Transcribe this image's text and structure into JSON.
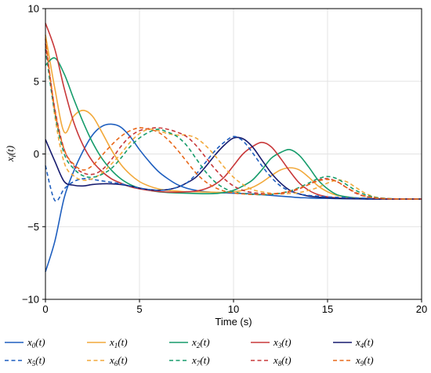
{
  "chart_data": {
    "type": "line",
    "title": "",
    "xlabel": "Time (s)",
    "ylabel": "x_i(t)",
    "ylabel_parts": {
      "x": "x",
      "i": "i",
      "t": "(t)"
    },
    "xlim": [
      0,
      20
    ],
    "ylim": [
      -10,
      10
    ],
    "xticks": [
      "0",
      "5",
      "10",
      "15",
      "20"
    ],
    "yticks": [
      "10",
      "5",
      "0",
      "−5",
      "−10"
    ],
    "grid": true,
    "legend": "bottom",
    "x": [
      0,
      0.5,
      1,
      1.5,
      2,
      2.5,
      3,
      3.5,
      4,
      4.5,
      5,
      5.5,
      6,
      6.5,
      7,
      7.5,
      8,
      8.5,
      9,
      9.5,
      10,
      10.5,
      11,
      11.5,
      12,
      12.5,
      13,
      13.5,
      14,
      14.5,
      15,
      15.5,
      16,
      16.5,
      17,
      17.5,
      18,
      18.5,
      19,
      19.5,
      20
    ],
    "series": [
      {
        "name": "x_0(t)",
        "sub": "0",
        "color": "#1f5fbf",
        "dash": false,
        "values": [
          -8.1,
          -6.0,
          -3.0,
          -1.2,
          0.2,
          1.3,
          1.9,
          2.05,
          1.85,
          1.2,
          0.3,
          -0.5,
          -1.2,
          -1.7,
          -2.1,
          -2.35,
          -2.5,
          -2.6,
          -2.65,
          -2.68,
          -2.7,
          -2.72,
          -2.75,
          -2.8,
          -2.85,
          -2.9,
          -2.95,
          -3.0,
          -3.02,
          -3.05,
          -3.05,
          -3.07,
          -3.08,
          -3.09,
          -3.1,
          -3.1,
          -3.1,
          -3.1,
          -3.1,
          -3.1,
          -3.1
        ]
      },
      {
        "name": "x_1(t)",
        "sub": "1",
        "color": "#f2a93b",
        "dash": false,
        "values": [
          8.2,
          4.5,
          1.5,
          2.6,
          3.0,
          2.6,
          1.5,
          0.3,
          -0.7,
          -1.4,
          -1.9,
          -2.2,
          -2.4,
          -2.5,
          -2.55,
          -2.6,
          -2.6,
          -2.62,
          -2.63,
          -2.65,
          -2.6,
          -2.5,
          -2.3,
          -1.95,
          -1.5,
          -1.1,
          -0.95,
          -1.1,
          -1.6,
          -2.2,
          -2.6,
          -2.85,
          -2.95,
          -3.02,
          -3.05,
          -3.08,
          -3.1,
          -3.1,
          -3.1,
          -3.1,
          -3.1
        ]
      },
      {
        "name": "x_2(t)",
        "sub": "2",
        "color": "#169c6b",
        "dash": false,
        "values": [
          6.1,
          6.6,
          5.5,
          3.8,
          2.2,
          0.8,
          -0.3,
          -1.1,
          -1.7,
          -2.1,
          -2.35,
          -2.5,
          -2.6,
          -2.65,
          -2.68,
          -2.7,
          -2.72,
          -2.73,
          -2.72,
          -2.65,
          -2.5,
          -2.2,
          -1.8,
          -1.1,
          -0.3,
          0.1,
          0.3,
          -0.1,
          -0.9,
          -1.8,
          -2.4,
          -2.8,
          -2.95,
          -3.03,
          -3.06,
          -3.08,
          -3.1,
          -3.1,
          -3.1,
          -3.1,
          -3.1
        ]
      },
      {
        "name": "x_3(t)",
        "sub": "3",
        "color": "#c8383a",
        "dash": false,
        "values": [
          9.0,
          7.2,
          4.5,
          2.2,
          0.6,
          -0.5,
          -1.2,
          -1.7,
          -2.0,
          -2.25,
          -2.4,
          -2.5,
          -2.58,
          -2.62,
          -2.63,
          -2.6,
          -2.55,
          -2.4,
          -2.1,
          -1.6,
          -0.8,
          0.0,
          0.5,
          0.8,
          0.5,
          -0.3,
          -1.2,
          -2.0,
          -2.5,
          -2.8,
          -2.95,
          -3.02,
          -3.05,
          -3.07,
          -3.08,
          -3.09,
          -3.1,
          -3.1,
          -3.1,
          -3.1,
          -3.1
        ]
      },
      {
        "name": "x_4(t)",
        "sub": "4",
        "color": "#161b6e",
        "dash": false,
        "values": [
          1.0,
          -0.5,
          -1.9,
          -2.15,
          -2.2,
          -2.1,
          -2.05,
          -2.05,
          -2.1,
          -2.2,
          -2.35,
          -2.45,
          -2.5,
          -2.45,
          -2.3,
          -2.0,
          -1.6,
          -0.9,
          -0.1,
          0.6,
          1.1,
          1.05,
          0.5,
          -0.4,
          -1.3,
          -2.0,
          -2.5,
          -2.75,
          -2.9,
          -2.97,
          -3.02,
          -3.05,
          -3.07,
          -3.08,
          -3.09,
          -3.1,
          -3.1,
          -3.1,
          -3.1,
          -3.1,
          -3.1
        ]
      },
      {
        "name": "x_5(t)",
        "sub": "5",
        "color": "#1f5fbf",
        "dash": true,
        "values": [
          -0.8,
          -3.2,
          -2.4,
          -1.9,
          -1.7,
          -1.75,
          -1.85,
          -1.95,
          -2.05,
          -2.2,
          -2.35,
          -2.45,
          -2.5,
          -2.45,
          -2.3,
          -2.0,
          -1.4,
          -0.6,
          0.2,
          0.8,
          1.2,
          0.9,
          0.1,
          -0.8,
          -1.6,
          -2.2,
          -2.55,
          -2.75,
          -2.85,
          -2.9,
          -2.95,
          -2.98,
          -3.0,
          -3.02,
          -3.04,
          -3.06,
          -3.08,
          -3.1,
          -3.1,
          -3.1,
          -3.1
        ]
      },
      {
        "name": "x_6(t)",
        "sub": "6",
        "color": "#f2a93b",
        "dash": true,
        "values": [
          8.0,
          2.6,
          -0.6,
          -1.5,
          -1.8,
          -1.7,
          -1.3,
          -0.7,
          0.0,
          0.8,
          1.4,
          1.7,
          1.6,
          1.4,
          1.3,
          1.3,
          1.1,
          0.6,
          -0.1,
          -0.9,
          -1.6,
          -2.1,
          -2.45,
          -2.6,
          -2.7,
          -2.75,
          -2.72,
          -2.65,
          -2.5,
          -2.3,
          -2.0,
          -1.8,
          -1.9,
          -2.3,
          -2.7,
          -2.95,
          -3.05,
          -3.08,
          -3.1,
          -3.1,
          -3.1
        ]
      },
      {
        "name": "x_7(t)",
        "sub": "7",
        "color": "#169c6b",
        "dash": true,
        "values": [
          7.2,
          2.8,
          0.0,
          -1.0,
          -1.5,
          -1.6,
          -1.4,
          -1.0,
          -0.3,
          0.5,
          1.1,
          1.5,
          1.7,
          1.5,
          1.2,
          0.6,
          -0.3,
          -1.2,
          -1.9,
          -2.35,
          -2.6,
          -2.72,
          -2.78,
          -2.8,
          -2.78,
          -2.7,
          -2.55,
          -2.3,
          -2.0,
          -1.7,
          -1.55,
          -1.7,
          -2.1,
          -2.5,
          -2.8,
          -2.98,
          -3.05,
          -3.08,
          -3.1,
          -3.1,
          -3.1
        ]
      },
      {
        "name": "x_8(t)",
        "sub": "8",
        "color": "#c8383a",
        "dash": true,
        "values": [
          7.6,
          3.1,
          0.3,
          -0.8,
          -1.3,
          -1.4,
          -1.1,
          -0.4,
          0.5,
          1.2,
          1.6,
          1.75,
          1.8,
          1.7,
          1.5,
          1.2,
          0.6,
          -0.2,
          -1.0,
          -1.7,
          -2.2,
          -2.5,
          -2.65,
          -2.72,
          -2.75,
          -2.72,
          -2.6,
          -2.4,
          -2.1,
          -1.8,
          -1.7,
          -1.9,
          -2.3,
          -2.7,
          -2.92,
          -3.03,
          -3.07,
          -3.09,
          -3.1,
          -3.1,
          -3.1
        ]
      },
      {
        "name": "x_9(t)",
        "sub": "9",
        "color": "#e8681a",
        "dash": true,
        "values": [
          7.9,
          3.0,
          0.3,
          -0.7,
          -1.1,
          -0.8,
          -0.1,
          0.6,
          1.2,
          1.6,
          1.8,
          1.7,
          1.5,
          1.0,
          0.3,
          -0.5,
          -1.3,
          -1.9,
          -2.3,
          -2.55,
          -2.68,
          -2.75,
          -2.78,
          -2.78,
          -2.75,
          -2.68,
          -2.55,
          -2.35,
          -2.1,
          -1.85,
          -1.75,
          -1.9,
          -2.3,
          -2.65,
          -2.9,
          -3.02,
          -3.07,
          -3.09,
          -3.1,
          -3.1,
          -3.1
        ]
      }
    ]
  }
}
